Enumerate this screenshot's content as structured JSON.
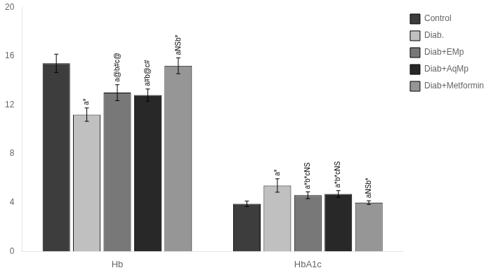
{
  "chart_data": {
    "type": "bar",
    "categories": [
      "Hb",
      "HbA1c"
    ],
    "series": [
      {
        "name": "Control",
        "color": "#3d3d3d",
        "values": [
          15.4,
          3.9
        ],
        "errors": [
          0.75,
          0.22
        ],
        "annotations": [
          null,
          null
        ]
      },
      {
        "name": "Diab.",
        "color": "#c0c0c0",
        "values": [
          11.2,
          5.4
        ],
        "errors": [
          0.55,
          0.55
        ],
        "annotations": [
          "a*",
          "a*"
        ]
      },
      {
        "name": "Diab+EMp",
        "color": "#787878",
        "values": [
          13.0,
          4.6
        ],
        "errors": [
          0.65,
          0.28
        ],
        "annotations": [
          "a@b#c@",
          "a*b*cNS"
        ]
      },
      {
        "name": "Diab+AqMp",
        "color": "#282828",
        "values": [
          12.8,
          4.7
        ],
        "errors": [
          0.5,
          0.28
        ],
        "annotations": [
          "a#b@c#",
          "a*b*cNS"
        ]
      },
      {
        "name": "Diab+Metformin",
        "color": "#969696",
        "values": [
          15.2,
          4.0
        ],
        "errors": [
          0.65,
          0.15
        ],
        "annotations": [
          "aNSb*",
          "aNSb*"
        ]
      }
    ],
    "ylim": [
      0,
      20
    ],
    "yticks": [
      0,
      4,
      8,
      12,
      16,
      20
    ],
    "grid": false,
    "legend": "upper right"
  }
}
